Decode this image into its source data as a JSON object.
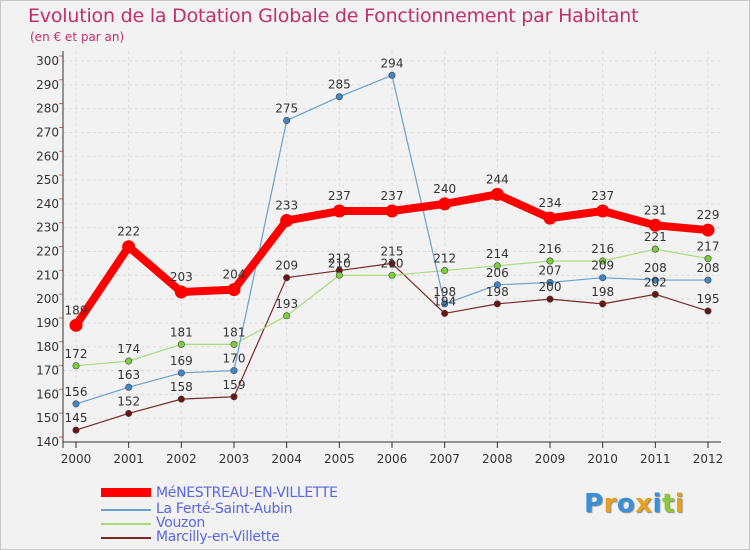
{
  "header": {
    "title": "Evolution de la Dotation Globale de Fonctionnement par Habitant",
    "subtitle": "(en € et par an)"
  },
  "chart_data": {
    "type": "line",
    "title": "Evolution de la Dotation Globale de Fonctionnement par Habitant",
    "subtitle": "(en € et par an)",
    "xlabel": "",
    "ylabel": "",
    "categories": [
      "2000",
      "2001",
      "2002",
      "2003",
      "2004",
      "2005",
      "2006",
      "2007",
      "2008",
      "2009",
      "2010",
      "2011",
      "2012"
    ],
    "ylim": [
      140,
      300
    ],
    "yticks": [
      "140",
      "150",
      "160",
      "170",
      "180",
      "190",
      "200",
      "210",
      "220",
      "230",
      "240",
      "250",
      "260",
      "270",
      "280",
      "290",
      "300"
    ],
    "grid": true,
    "legend_position": "bottom-left",
    "series": [
      {
        "name": "MéNESTREAU-EN-VILLETTE",
        "color": "#ff0000",
        "marker": "#ff0000",
        "values": [
          189,
          222,
          203,
          204,
          233,
          237,
          237,
          240,
          244,
          234,
          237,
          231,
          229
        ]
      },
      {
        "name": "La Ferté-Saint-Aubin",
        "color": "#6aa0cf",
        "marker": "#3f86c8",
        "values": [
          156,
          163,
          169,
          170,
          275,
          285,
          294,
          198,
          206,
          207,
          209,
          208,
          208
        ]
      },
      {
        "name": "Vouzon",
        "color": "#a8dc7a",
        "marker": "#7ccf3a",
        "values": [
          172,
          174,
          181,
          181,
          193,
          210,
          210,
          212,
          214,
          216,
          216,
          221,
          217
        ]
      },
      {
        "name": "Marcilly-en-Villette",
        "color": "#7a2a2a",
        "marker": "#6a1414",
        "values": [
          145,
          152,
          158,
          159,
          209,
          212,
          215,
          194,
          198,
          200,
          198,
          202,
          195
        ]
      }
    ]
  },
  "logo": {
    "letters": [
      "P",
      "r",
      "o",
      "x",
      "i",
      "t",
      "i"
    ],
    "colors": [
      "#3a8fd6",
      "#e8a020",
      "#3a8fd6",
      "#e8a020",
      "#3a8fd6",
      "#8cc63f",
      "#e8a020"
    ]
  }
}
